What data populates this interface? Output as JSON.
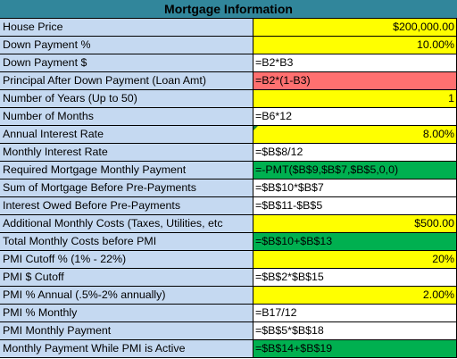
{
  "title": "Mortgage Information",
  "rows": [
    {
      "label": "House Price",
      "value": "$200,000.00",
      "bg": "#ffff00",
      "align": "right"
    },
    {
      "label": "Down Payment %",
      "value": "10.00%",
      "bg": "#ffff00",
      "align": "right"
    },
    {
      "label": "Down Payment $",
      "value": "=B2*B3",
      "bg": "#ffffff",
      "align": "left"
    },
    {
      "label": "Principal After Down Payment (Loan Amt)",
      "value": "=B2*(1-B3)",
      "bg": "#ff7070",
      "align": "left"
    },
    {
      "label": "Number of Years (Up to 50)",
      "value": "1",
      "bg": "#ffff00",
      "align": "right"
    },
    {
      "label": "Number of Months",
      "value": "=B6*12",
      "bg": "#ffffff",
      "align": "left"
    },
    {
      "label": "Annual Interest Rate",
      "value": "8.00%",
      "bg": "#ffff00",
      "align": "right",
      "marker": true
    },
    {
      "label": "Monthly Interest Rate",
      "value": "=$B$8/12",
      "bg": "#ffffff",
      "align": "left"
    },
    {
      "label": "Required Mortgage Monthly Payment",
      "value": "=-PMT($B$9,$B$7,$B$5,0,0)",
      "bg": "#00b050",
      "align": "left"
    },
    {
      "label": "Sum of Mortgage Before Pre-Payments",
      "value": "=$B$10*$B$7",
      "bg": "#ffffff",
      "align": "left"
    },
    {
      "label": "Interest Owed Before Pre-Payments",
      "value": "=$B$11-$B$5",
      "bg": "#ffffff",
      "align": "left"
    },
    {
      "label": "Additional Monthly Costs (Taxes, Utilities, etc",
      "value": "$500.00",
      "bg": "#ffff00",
      "align": "right"
    },
    {
      "label": "Total Monthly Costs before PMI",
      "value": "=$B$10+$B$13",
      "bg": "#00b050",
      "align": "left"
    },
    {
      "label": "PMI Cutoff % (1% - 22%)",
      "value": "20%",
      "bg": "#ffff00",
      "align": "right"
    },
    {
      "label": "PMI $ Cutoff",
      "value": "=$B$2*$B$15",
      "bg": "#ffffff",
      "align": "left"
    },
    {
      "label": "PMI % Annual (.5%-2% annually)",
      "value": "2.00%",
      "bg": "#ffff00",
      "align": "right"
    },
    {
      "label": "PMI % Monthly",
      "value": "=B17/12",
      "bg": "#ffffff",
      "align": "left"
    },
    {
      "label": "PMI Monthly Payment",
      "value": "=$B$5*$B$18",
      "bg": "#ffffff",
      "align": "left"
    },
    {
      "label": "Monthly Payment While PMI is Active",
      "value": "=$B$14+$B$19",
      "bg": "#00b050",
      "align": "left"
    }
  ]
}
